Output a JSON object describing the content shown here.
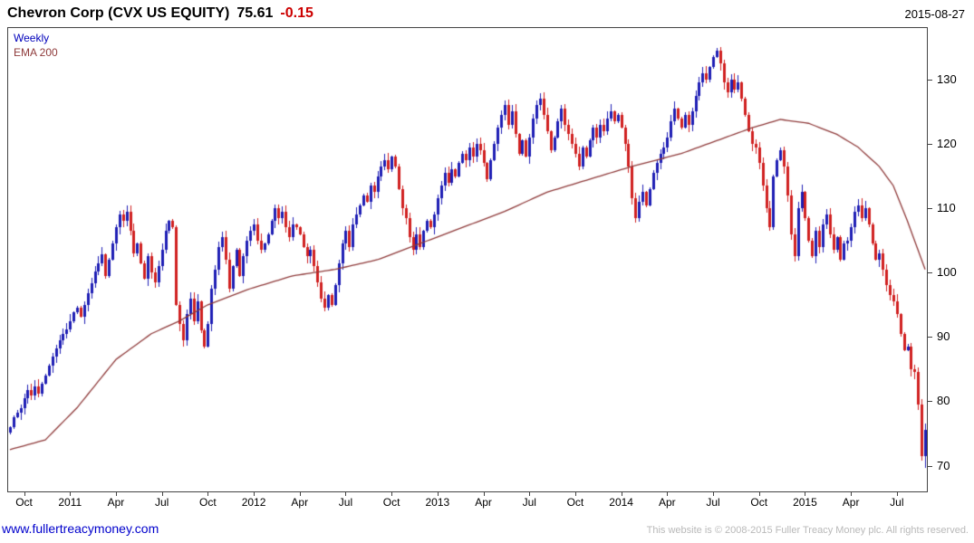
{
  "header": {
    "title": "Chevron Corp (CVX US EQUITY)",
    "last_price": "75.61",
    "change": "-0.15",
    "date": "2015-08-27"
  },
  "legend": {
    "weekly": "Weekly",
    "ema": "EMA 200"
  },
  "footer": {
    "link": "www.fullertreacymoney.com",
    "copyright": "This website is © 2008-2015 Fuller Treacy Money plc. All rights reserved."
  },
  "colors": {
    "up_bar": "#1e1eb4",
    "down_bar": "#d02020",
    "ema_line": "#8f3b3b",
    "change_text": "#cc0000",
    "legend_weekly_text": "#0000bb",
    "link_text": "#0000cc",
    "copyright_text": "#b9b9b9",
    "axis_text": "#000000"
  },
  "chart_data": {
    "type": "candlestick-weekly",
    "title": "Chevron Corp (CVX US EQUITY)",
    "subtitle": "Weekly bars with 200-period EMA, Sep 2010 - Aug 2015",
    "ylim": [
      66,
      138
    ],
    "y_ticks": [
      70,
      80,
      90,
      100,
      110,
      120,
      130
    ],
    "x_ticks": [
      {
        "label": "Oct",
        "week": 4
      },
      {
        "label": "2011",
        "week": 17
      },
      {
        "label": "Apr",
        "week": 30
      },
      {
        "label": "Jul",
        "week": 43
      },
      {
        "label": "Oct",
        "week": 56
      },
      {
        "label": "2012",
        "week": 69
      },
      {
        "label": "Apr",
        "week": 82
      },
      {
        "label": "Jul",
        "week": 95
      },
      {
        "label": "Oct",
        "week": 108
      },
      {
        "label": "2013",
        "week": 121
      },
      {
        "label": "Apr",
        "week": 134
      },
      {
        "label": "Jul",
        "week": 147
      },
      {
        "label": "Oct",
        "week": 160
      },
      {
        "label": "2014",
        "week": 173
      },
      {
        "label": "Apr",
        "week": 186
      },
      {
        "label": "Jul",
        "week": 199
      },
      {
        "label": "Oct",
        "week": 212
      },
      {
        "label": "2015",
        "week": 225
      },
      {
        "label": "Apr",
        "week": 238
      },
      {
        "label": "Jul",
        "week": 251
      }
    ],
    "weekly_closes": [
      76.0,
      77.5,
      78.2,
      79.0,
      80.5,
      81.8,
      80.9,
      82.3,
      81.2,
      82.8,
      84.0,
      85.5,
      87.0,
      88.2,
      89.5,
      90.4,
      91.2,
      92.5,
      93.8,
      94.5,
      93.2,
      95.0,
      96.8,
      98.4,
      100.2,
      101.5,
      102.8,
      99.5,
      102.0,
      104.5,
      107.0,
      109.0,
      108.0,
      109.5,
      106.5,
      103.0,
      104.5,
      101.5,
      99.0,
      102.5,
      100.0,
      98.5,
      101.0,
      103.5,
      106.5,
      108.0,
      107.0,
      95.0,
      92.0,
      89.5,
      93.5,
      96.0,
      92.5,
      95.5,
      91.0,
      88.5,
      92.0,
      97.5,
      100.5,
      104.0,
      105.5,
      102.0,
      97.5,
      101.0,
      103.5,
      99.5,
      102.5,
      105.0,
      106.5,
      107.5,
      105.0,
      103.5,
      104.5,
      106.0,
      108.0,
      110.0,
      108.5,
      109.5,
      107.0,
      105.5,
      107.5,
      107.0,
      106.0,
      104.0,
      102.5,
      103.5,
      101.0,
      98.5,
      96.0,
      94.5,
      96.5,
      95.0,
      98.0,
      101.5,
      104.5,
      106.5,
      104.0,
      107.5,
      109.0,
      110.5,
      112.0,
      111.0,
      113.5,
      112.5,
      115.0,
      116.5,
      117.5,
      116.0,
      118.0,
      116.5,
      113.0,
      110.0,
      108.5,
      105.5,
      103.5,
      106.0,
      104.0,
      106.5,
      108.0,
      107.0,
      109.0,
      111.5,
      113.5,
      115.5,
      114.0,
      116.0,
      115.0,
      117.0,
      118.5,
      117.5,
      119.5,
      118.0,
      120.0,
      119.0,
      117.0,
      114.5,
      117.5,
      120.0,
      122.5,
      124.5,
      126.0,
      123.0,
      125.0,
      121.5,
      118.5,
      120.5,
      118.0,
      121.0,
      124.0,
      126.0,
      127.0,
      124.5,
      122.0,
      119.0,
      121.0,
      123.5,
      125.5,
      123.0,
      121.5,
      120.0,
      118.5,
      116.5,
      119.5,
      118.0,
      120.5,
      122.5,
      121.0,
      123.0,
      122.0,
      124.0,
      125.0,
      123.5,
      124.5,
      122.5,
      120.0,
      116.5,
      111.5,
      108.5,
      111.0,
      112.5,
      110.5,
      113.0,
      115.5,
      117.0,
      118.5,
      119.5,
      121.0,
      123.5,
      125.5,
      124.0,
      122.5,
      124.5,
      123.0,
      125.0,
      127.5,
      129.5,
      131.0,
      130.0,
      132.0,
      133.5,
      134.5,
      132.5,
      129.5,
      128.0,
      130.0,
      128.5,
      129.5,
      127.0,
      124.5,
      122.0,
      120.0,
      119.5,
      117.0,
      113.5,
      110.0,
      107.0,
      115.0,
      117.5,
      119.0,
      116.5,
      112.0,
      106.0,
      102.5,
      110.0,
      112.5,
      108.5,
      105.0,
      102.5,
      106.5,
      104.0,
      107.5,
      109.0,
      106.0,
      103.5,
      105.5,
      102.0,
      104.5,
      105.0,
      107.0,
      109.5,
      110.5,
      108.5,
      110.0,
      107.5,
      104.5,
      102.0,
      103.0,
      100.5,
      98.0,
      96.5,
      95.5,
      93.5,
      90.5,
      88.0,
      88.5,
      85.0,
      84.5,
      79.5,
      71.5,
      75.61
    ],
    "last_week_low": 69.6,
    "last_price": 75.61,
    "ema_keypoints": [
      [
        0,
        72.5
      ],
      [
        10,
        74.0
      ],
      [
        19,
        79.0
      ],
      [
        30,
        86.5
      ],
      [
        40,
        90.5
      ],
      [
        48,
        92.5
      ],
      [
        56,
        95.0
      ],
      [
        68,
        97.5
      ],
      [
        80,
        99.5
      ],
      [
        92,
        100.5
      ],
      [
        104,
        102.0
      ],
      [
        116,
        104.5
      ],
      [
        128,
        107.0
      ],
      [
        140,
        109.5
      ],
      [
        152,
        112.5
      ],
      [
        164,
        114.5
      ],
      [
        176,
        116.5
      ],
      [
        190,
        118.5
      ],
      [
        200,
        120.5
      ],
      [
        210,
        122.5
      ],
      [
        218,
        123.8
      ],
      [
        226,
        123.2
      ],
      [
        234,
        121.5
      ],
      [
        240,
        119.5
      ],
      [
        246,
        116.5
      ],
      [
        250,
        113.5
      ],
      [
        254,
        108.0
      ],
      [
        259,
        100.5
      ]
    ],
    "grid": false,
    "legend_position": "top-left-inside",
    "y_axis_side": "right"
  }
}
